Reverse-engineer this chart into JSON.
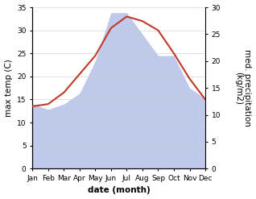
{
  "months": [
    "Jan",
    "Feb",
    "Mar",
    "Apr",
    "May",
    "Jun",
    "Jul",
    "Aug",
    "Sep",
    "Oct",
    "Nov",
    "Dec"
  ],
  "temperature": [
    13.5,
    14.0,
    16.5,
    20.5,
    24.5,
    30.5,
    33.0,
    32.0,
    30.0,
    25.0,
    19.5,
    15.0
  ],
  "precipitation": [
    12.0,
    11.0,
    12.0,
    14.0,
    20.0,
    29.0,
    29.0,
    25.0,
    21.0,
    21.0,
    15.0,
    13.0
  ],
  "temp_ylim": [
    0,
    35
  ],
  "precip_ylim": [
    0,
    30
  ],
  "temp_yticks": [
    0,
    5,
    10,
    15,
    20,
    25,
    30,
    35
  ],
  "precip_yticks": [
    0,
    5,
    10,
    15,
    20,
    25,
    30
  ],
  "xlabel": "date (month)",
  "ylabel_left": "max temp (C)",
  "ylabel_right": "med. precipitation\n(kg/m2)",
  "temp_color": "#c0392b",
  "precip_fill_color": "#bfc9ea",
  "background_color": "#ffffff",
  "label_fontsize": 7.5,
  "tick_fontsize": 6.5
}
